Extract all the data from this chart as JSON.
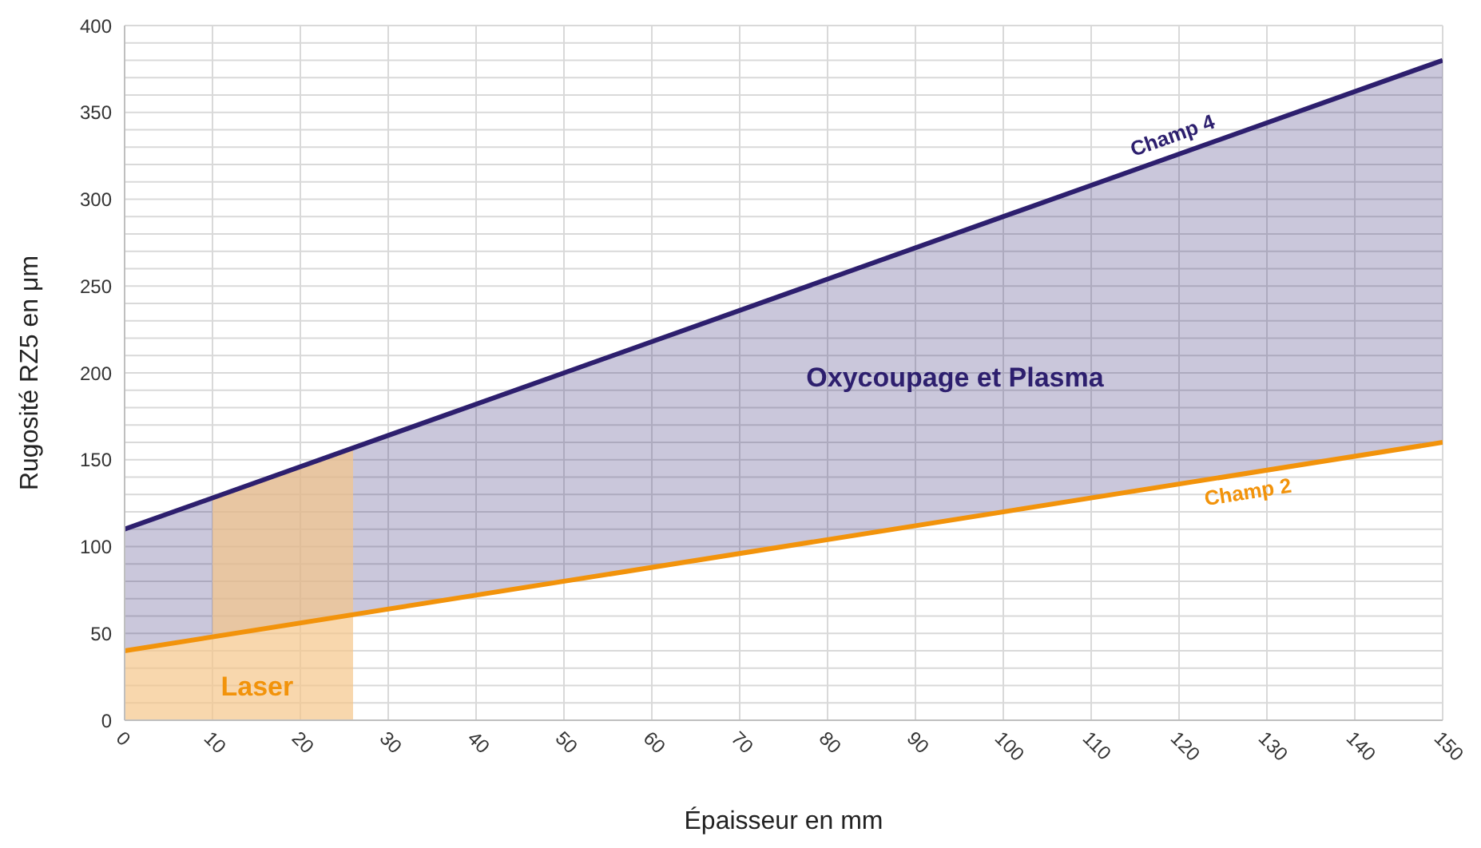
{
  "chart_data": {
    "type": "line",
    "xlabel": "Épaisseur en mm",
    "ylabel": "Rugosité RZ5 en μm",
    "xlim": [
      0,
      150
    ],
    "xticks": [
      0,
      10,
      20,
      30,
      40,
      50,
      60,
      70,
      80,
      90,
      100,
      110,
      120,
      130,
      140,
      150
    ],
    "ylim": [
      0,
      400
    ],
    "yticks": [
      0,
      {
        "value": 10,
        "label": null
      },
      {
        "value": 20,
        "label": null
      },
      {
        "value": 30,
        "label": null
      },
      {
        "value": 40,
        "label": null
      },
      50,
      {
        "value": 60,
        "label": null
      },
      {
        "value": 70,
        "label": null
      },
      {
        "value": 80,
        "label": null
      },
      {
        "value": 90,
        "label": null
      },
      100,
      {
        "value": 110,
        "label": null
      },
      {
        "value": 120,
        "label": null
      },
      {
        "value": 130,
        "label": null
      },
      {
        "value": 140,
        "label": null
      },
      150,
      {
        "value": 160,
        "label": null
      },
      {
        "value": 170,
        "label": null
      },
      {
        "value": 180,
        "label": null
      },
      {
        "value": 190,
        "label": null
      },
      200,
      {
        "value": 210,
        "label": null
      },
      {
        "value": 220,
        "label": null
      },
      {
        "value": 230,
        "label": null
      },
      {
        "value": 240,
        "label": null
      },
      250,
      {
        "value": 260,
        "label": null
      },
      {
        "value": 270,
        "label": null
      },
      {
        "value": 280,
        "label": null
      },
      {
        "value": 290,
        "label": null
      },
      300,
      {
        "value": 310,
        "label": null
      },
      {
        "value": 320,
        "label": null
      },
      {
        "value": 330,
        "label": null
      },
      {
        "value": 340,
        "label": null
      },
      350,
      {
        "value": 360,
        "label": null
      },
      {
        "value": 370,
        "label": null
      },
      {
        "value": 380,
        "label": null
      },
      {
        "value": 390,
        "label": null
      },
      400
    ],
    "grid": true,
    "marker": "none",
    "line_style": "solid",
    "legend": false,
    "annotations": [
      "Oxycoupage et Plasma"
    ],
    "series": [
      {
        "type": "area",
        "name": "Laser",
        "color": "#f5c68a",
        "x": [
          0,
          10,
          10,
          26
        ],
        "values": [
          40,
          48,
          128,
          157
        ]
      },
      {
        "name": "Champ 4",
        "color": "#2d1f6e",
        "x": [
          0,
          150
        ],
        "values": [
          110,
          380
        ],
        "lower": [
          40,
          160
        ],
        "upper": [
          110,
          380
        ]
      },
      {
        "name": "Champ 2",
        "color": "#f2930b",
        "x": [
          0,
          150
        ],
        "values": [
          40,
          160
        ]
      }
    ]
  }
}
